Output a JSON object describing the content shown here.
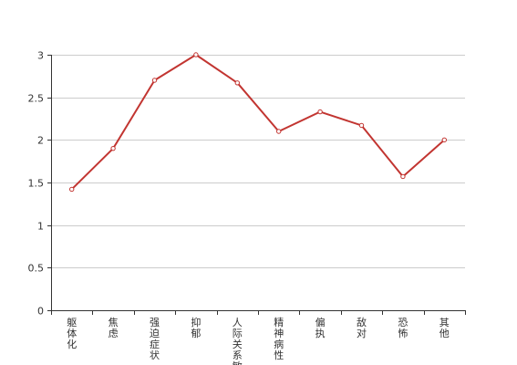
{
  "chart_data": {
    "type": "line",
    "categories": [
      "躯体化",
      "焦虑",
      "强迫症状",
      "抑郁",
      "人际关系敏感",
      "精神病性",
      "偏执",
      "敌对",
      "恐怖",
      "其他"
    ],
    "series": [
      {
        "values": [
          1.42,
          1.9,
          2.7,
          3.0,
          2.67,
          2.1,
          2.33,
          2.17,
          1.57,
          2.0
        ],
        "color": "#c23531"
      }
    ],
    "title": "",
    "xlabel": "",
    "ylabel": "",
    "ylim": [
      0,
      3
    ],
    "yticks": [
      0,
      0.5,
      1,
      1.5,
      2,
      2.5,
      3
    ],
    "ytick_labels": [
      "0",
      "0.5",
      "1",
      "1.5",
      "2",
      "2.5",
      "3"
    ],
    "grid": true,
    "legend": "none"
  }
}
